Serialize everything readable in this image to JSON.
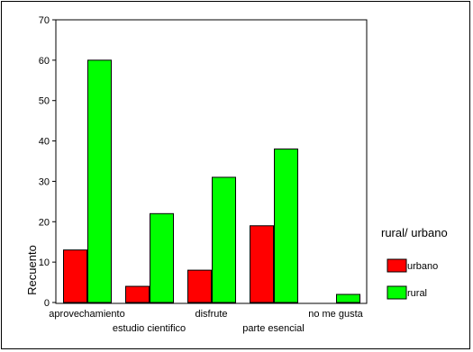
{
  "chart_data": {
    "type": "bar",
    "categories": [
      "aprovechamiento",
      "estudio cientifico",
      "disfrute",
      "parte esencial",
      "no me gusta"
    ],
    "series": [
      {
        "name": "urbano",
        "values": [
          13,
          4,
          8,
          19,
          0
        ],
        "color": "#ff0000"
      },
      {
        "name": "rural",
        "values": [
          60,
          22,
          31,
          38,
          2
        ],
        "color": "#00ff00"
      }
    ],
    "ylabel": "Recuento",
    "xlabel": "",
    "ylim": [
      0,
      70
    ],
    "yticks": [
      0,
      10,
      20,
      30,
      40,
      50,
      60,
      70
    ],
    "legend_title": "rural/ urbano",
    "legend_position": "right",
    "grid": false
  }
}
